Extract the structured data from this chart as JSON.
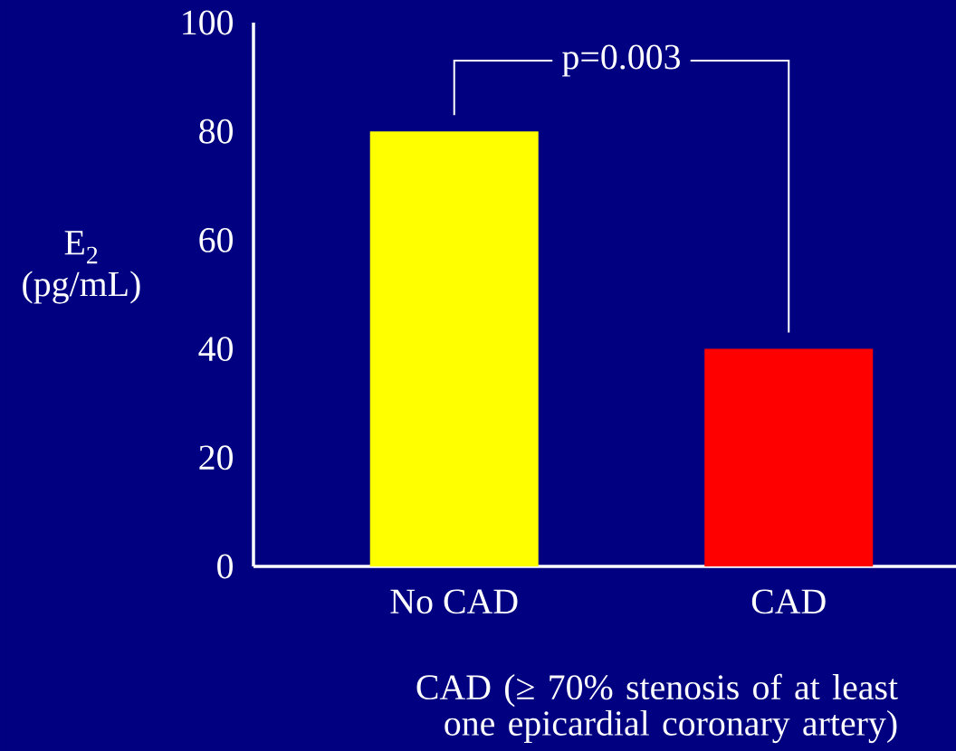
{
  "chart_data": {
    "type": "bar",
    "categories": [
      "No CAD",
      "CAD"
    ],
    "values": [
      80,
      40
    ],
    "colors": [
      "#ffff00",
      "#ff0000"
    ],
    "ylabel": "E$_{2}$ (pg/mL)",
    "xlabel": "CAD (≥  70% stenosis of at least one epicardial coronary artery)",
    "ylim": [
      0,
      100
    ],
    "yticks": [
      0,
      20,
      40,
      60,
      80,
      100
    ],
    "annotations": [
      "p=0.003"
    ]
  }
}
